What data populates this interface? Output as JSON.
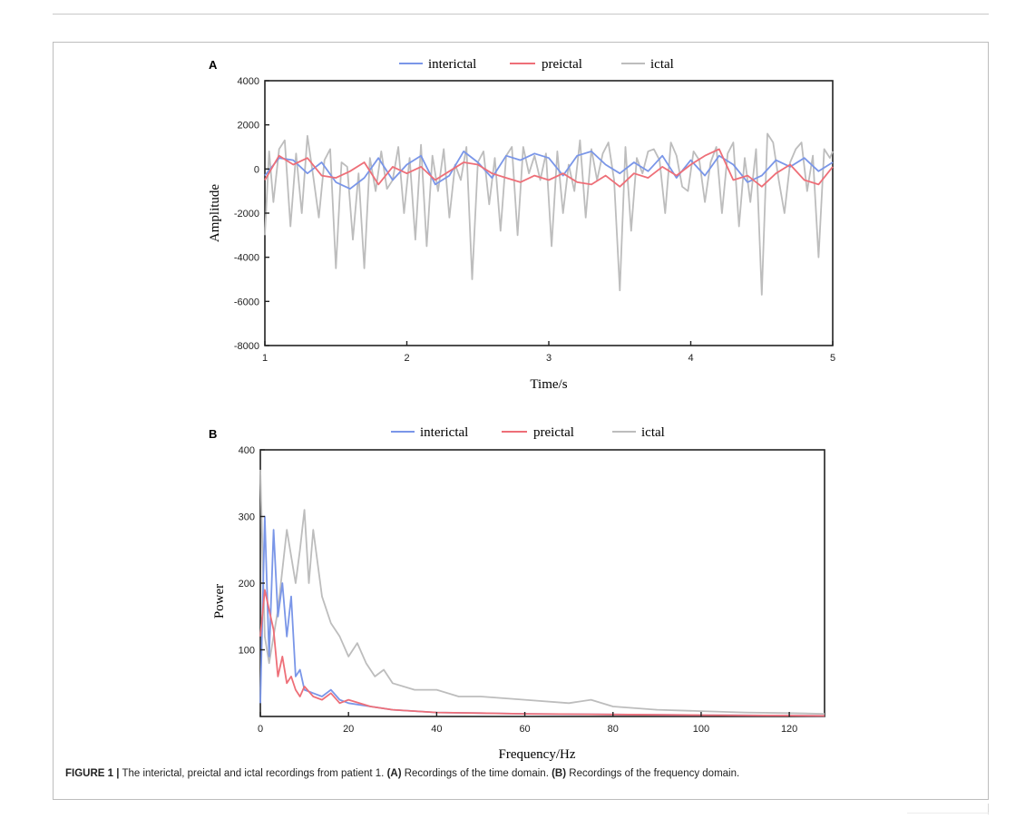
{
  "caption": {
    "label": "FIGURE 1 |",
    "text1": " The interictal, preictal and ictal recordings from patient 1. ",
    "a_tag": "(A)",
    "text2": " Recordings of the time domain. ",
    "b_tag": "(B)",
    "text3": " Recordings of the frequency domain."
  },
  "colors": {
    "interictal": "#7a96e8",
    "preictal": "#ee6f78",
    "ictal": "#bdbdbd"
  },
  "chart_data": [
    {
      "panel": "A",
      "type": "line",
      "title": "",
      "xlabel": "Time/s",
      "ylabel": "Amplitude",
      "xlim": [
        1,
        5
      ],
      "ylim": [
        -8000,
        4000
      ],
      "xticks": [
        1,
        2,
        3,
        4,
        5
      ],
      "yticks": [
        4000,
        2000,
        0,
        -2000,
        -4000,
        -6000,
        -8000
      ],
      "legend": [
        "interictal",
        "preictal",
        "ictal"
      ],
      "legend_position": "top-center",
      "series": [
        {
          "name": "interictal",
          "x": [
            1.0,
            1.1,
            1.2,
            1.3,
            1.4,
            1.5,
            1.6,
            1.7,
            1.8,
            1.9,
            2.0,
            2.1,
            2.2,
            2.3,
            2.4,
            2.5,
            2.6,
            2.7,
            2.8,
            2.9,
            3.0,
            3.1,
            3.2,
            3.3,
            3.4,
            3.5,
            3.6,
            3.7,
            3.8,
            3.9,
            4.0,
            4.1,
            4.2,
            4.3,
            4.4,
            4.5,
            4.6,
            4.7,
            4.8,
            4.9,
            5.0
          ],
          "values": [
            -300,
            500,
            400,
            -200,
            300,
            -600,
            -900,
            -400,
            500,
            -500,
            200,
            600,
            -700,
            -300,
            800,
            300,
            -400,
            600,
            400,
            700,
            500,
            -300,
            600,
            800,
            200,
            -200,
            300,
            -100,
            600,
            -400,
            400,
            -300,
            600,
            200,
            -600,
            -300,
            400,
            100,
            500,
            -100,
            300
          ]
        },
        {
          "name": "preictal",
          "x": [
            1.0,
            1.1,
            1.2,
            1.3,
            1.4,
            1.5,
            1.6,
            1.7,
            1.8,
            1.9,
            2.0,
            2.1,
            2.2,
            2.3,
            2.4,
            2.5,
            2.6,
            2.7,
            2.8,
            2.9,
            3.0,
            3.1,
            3.2,
            3.3,
            3.4,
            3.5,
            3.6,
            3.7,
            3.8,
            3.9,
            4.0,
            4.1,
            4.2,
            4.3,
            4.4,
            4.5,
            4.6,
            4.7,
            4.8,
            4.9,
            5.0
          ],
          "values": [
            -500,
            600,
            200,
            500,
            -300,
            -400,
            -100,
            300,
            -700,
            100,
            -200,
            100,
            -500,
            -100,
            300,
            200,
            -200,
            -400,
            -600,
            -300,
            -500,
            -200,
            -600,
            -700,
            -300,
            -800,
            -200,
            -400,
            100,
            -300,
            200,
            600,
            900,
            -500,
            -300,
            -800,
            -200,
            200,
            -500,
            -700,
            100
          ]
        },
        {
          "name": "ictal",
          "x": [
            1.0,
            1.03,
            1.06,
            1.1,
            1.14,
            1.18,
            1.22,
            1.26,
            1.3,
            1.34,
            1.38,
            1.42,
            1.46,
            1.5,
            1.54,
            1.58,
            1.62,
            1.66,
            1.7,
            1.74,
            1.78,
            1.82,
            1.86,
            1.9,
            1.94,
            1.98,
            2.02,
            2.06,
            2.1,
            2.14,
            2.18,
            2.22,
            2.26,
            2.3,
            2.34,
            2.38,
            2.42,
            2.46,
            2.5,
            2.54,
            2.58,
            2.62,
            2.66,
            2.7,
            2.74,
            2.78,
            2.82,
            2.86,
            2.9,
            2.94,
            2.98,
            3.02,
            3.06,
            3.1,
            3.14,
            3.18,
            3.22,
            3.26,
            3.3,
            3.34,
            3.38,
            3.42,
            3.46,
            3.5,
            3.54,
            3.58,
            3.62,
            3.66,
            3.7,
            3.74,
            3.78,
            3.82,
            3.86,
            3.9,
            3.94,
            3.98,
            4.02,
            4.06,
            4.1,
            4.14,
            4.18,
            4.22,
            4.26,
            4.3,
            4.34,
            4.38,
            4.42,
            4.46,
            4.5,
            4.54,
            4.58,
            4.62,
            4.66,
            4.7,
            4.74,
            4.78,
            4.82,
            4.86,
            4.9,
            4.94,
            4.98,
            5.0
          ],
          "values": [
            -3000,
            800,
            -1500,
            900,
            1300,
            -2600,
            700,
            -2000,
            1500,
            -300,
            -2200,
            400,
            900,
            -4500,
            300,
            100,
            -3200,
            -200,
            -4500,
            500,
            -1000,
            800,
            -900,
            -500,
            1000,
            -2000,
            500,
            -3200,
            1100,
            -3500,
            600,
            -1000,
            900,
            -2200,
            200,
            -500,
            1000,
            -5000,
            300,
            800,
            -1600,
            500,
            -2800,
            600,
            1000,
            -3000,
            1000,
            -200,
            600,
            -500,
            700,
            -3500,
            800,
            -2000,
            200,
            -1000,
            1300,
            -2200,
            900,
            -500,
            700,
            1200,
            -500,
            -5500,
            1000,
            -2800,
            500,
            -200,
            800,
            900,
            400,
            -2000,
            1200,
            600,
            -800,
            -1000,
            800,
            400,
            -1500,
            300,
            1000,
            -2000,
            700,
            1200,
            -2600,
            500,
            -1500,
            900,
            -5700,
            1600,
            1200,
            -500,
            -2000,
            300,
            900,
            1200,
            -1000,
            600,
            -4000,
            900,
            500,
            800
          ]
        }
      ]
    },
    {
      "panel": "B",
      "type": "line",
      "title": "",
      "xlabel": "Frequency/Hz",
      "ylabel": "Power",
      "xlim": [
        0,
        128
      ],
      "ylim": [
        0,
        400
      ],
      "xticks": [
        0,
        20,
        40,
        60,
        80,
        100,
        120
      ],
      "yticks": [
        400,
        300,
        200,
        100
      ],
      "legend": [
        "interictal",
        "preictal",
        "ictal"
      ],
      "legend_position": "top-center",
      "series": [
        {
          "name": "interictal",
          "x": [
            0,
            1,
            2,
            3,
            4,
            5,
            6,
            7,
            8,
            9,
            10,
            12,
            14,
            16,
            18,
            20,
            25,
            30,
            40,
            50,
            60,
            80,
            100,
            128
          ],
          "values": [
            20,
            300,
            90,
            280,
            150,
            200,
            120,
            180,
            60,
            70,
            40,
            35,
            30,
            40,
            25,
            20,
            15,
            10,
            6,
            5,
            4,
            3,
            2,
            1
          ]
        },
        {
          "name": "preictal",
          "x": [
            0,
            1,
            2,
            3,
            4,
            5,
            6,
            7,
            8,
            9,
            10,
            12,
            14,
            16,
            18,
            20,
            25,
            30,
            40,
            50,
            60,
            80,
            100,
            128
          ],
          "values": [
            120,
            190,
            160,
            130,
            60,
            90,
            50,
            60,
            40,
            30,
            45,
            30,
            25,
            35,
            20,
            25,
            15,
            10,
            6,
            5,
            4,
            3,
            2,
            1
          ]
        },
        {
          "name": "ictal",
          "x": [
            0,
            1,
            2,
            4,
            6,
            8,
            9,
            10,
            11,
            12,
            14,
            16,
            18,
            20,
            22,
            24,
            26,
            28,
            30,
            35,
            40,
            45,
            50,
            60,
            70,
            75,
            80,
            90,
            100,
            110,
            120,
            128
          ],
          "values": [
            370,
            120,
            80,
            160,
            280,
            200,
            250,
            310,
            200,
            280,
            180,
            140,
            120,
            90,
            110,
            80,
            60,
            70,
            50,
            40,
            40,
            30,
            30,
            25,
            20,
            25,
            15,
            10,
            8,
            6,
            5,
            4
          ]
        }
      ]
    }
  ]
}
